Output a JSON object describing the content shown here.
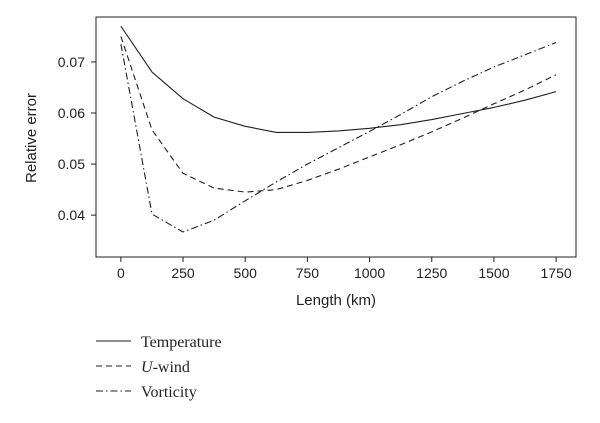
{
  "chart_data": {
    "type": "line",
    "xlabel": "Length (km)",
    "ylabel": "Relative error",
    "xlim": [
      -100,
      1830
    ],
    "ylim": [
      0.0318,
      0.0788
    ],
    "xticks": [
      "0",
      "250",
      "500",
      "750",
      "1000",
      "1250",
      "1500",
      "1750"
    ],
    "yticks": [
      "0.04",
      "0.05",
      "0.06",
      "0.07"
    ],
    "grid": false,
    "legend_position": "bottom-left, below plot",
    "series": [
      {
        "name": "Temperature",
        "linestyle": "solid",
        "x": [
          0,
          125,
          250,
          375,
          500,
          625,
          750,
          875,
          1000,
          1125,
          1250,
          1375,
          1500,
          1625,
          1750
        ],
        "y": [
          0.077,
          0.068,
          0.0628,
          0.0592,
          0.0574,
          0.0562,
          0.0562,
          0.0565,
          0.057,
          0.0577,
          0.0587,
          0.0599,
          0.0611,
          0.0625,
          0.0642
        ]
      },
      {
        "name": "U-wind",
        "name_prefix": "U",
        "name_suffix": "-wind",
        "linestyle": "dashed",
        "x": [
          0,
          125,
          250,
          375,
          500,
          625,
          750,
          875,
          1000,
          1125,
          1250,
          1375,
          1500,
          1625,
          1750
        ],
        "y": [
          0.075,
          0.0567,
          0.0482,
          0.0453,
          0.0445,
          0.045,
          0.0468,
          0.049,
          0.0514,
          0.0538,
          0.0563,
          0.059,
          0.0618,
          0.0645,
          0.0675
        ]
      },
      {
        "name": "Vorticity",
        "linestyle": "dashdot",
        "x": [
          0,
          125,
          250,
          375,
          500,
          625,
          750,
          875,
          1000,
          1125,
          1250,
          1375,
          1500,
          1625,
          1750
        ],
        "y": [
          0.0735,
          0.0402,
          0.0367,
          0.039,
          0.0428,
          0.0465,
          0.05,
          0.0532,
          0.0564,
          0.0597,
          0.0632,
          0.0662,
          0.069,
          0.0714,
          0.0738
        ]
      }
    ]
  }
}
